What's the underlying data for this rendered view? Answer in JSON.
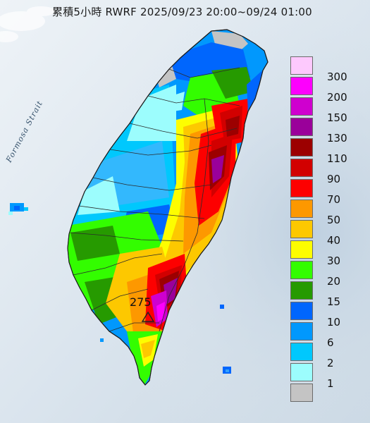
{
  "title": "累積5小時 RWRF 2025/09/23 20:00~09/24 01:00",
  "sea_label": "Formosa Strait",
  "max_label": "275",
  "legend": {
    "unit": "",
    "levels": [
      {
        "label": "300",
        "color": "#fdc9fd"
      },
      {
        "label": "200",
        "color": "#fd00fd"
      },
      {
        "label": "150",
        "color": "#cf00cf"
      },
      {
        "label": "130",
        "color": "#9a009a"
      },
      {
        "label": "110",
        "color": "#9c0000"
      },
      {
        "label": "90",
        "color": "#d20000"
      },
      {
        "label": "70",
        "color": "#fd0000"
      },
      {
        "label": "50",
        "color": "#fd9800"
      },
      {
        "label": "40",
        "color": "#fdc800"
      },
      {
        "label": "30",
        "color": "#fdfd00"
      },
      {
        "label": "20",
        "color": "#33fd00"
      },
      {
        "label": "15",
        "color": "#269a00"
      },
      {
        "label": "10",
        "color": "#0066fd"
      },
      {
        "label": "6",
        "color": "#0198fd"
      },
      {
        "label": "2",
        "color": "#00c8fd"
      },
      {
        "label": "1",
        "color": "#9cfdfd"
      },
      {
        "label": "",
        "color": "#c4c4c4"
      }
    ]
  }
}
